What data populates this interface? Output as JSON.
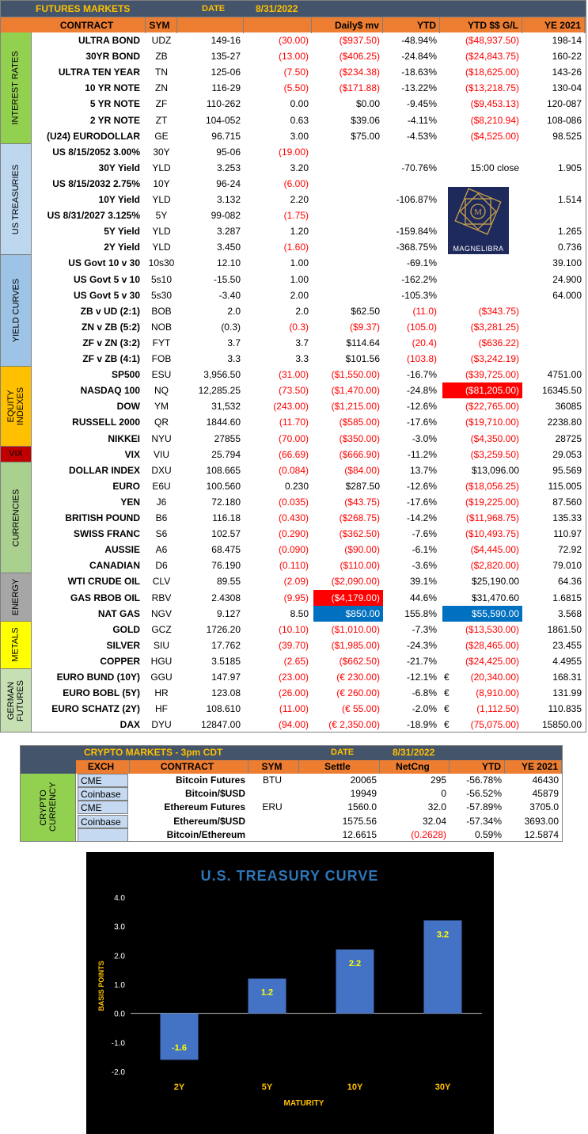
{
  "futures": {
    "title": "FUTURES MARKETS",
    "date_label": "DATE",
    "date": "8/31/2022",
    "columns": [
      "CONTRACT",
      "SYM",
      "",
      "",
      "Daily$ mv",
      "YTD",
      "YTD $$ G/L",
      "YE 2021"
    ],
    "categories": [
      {
        "label": "INTEREST RATES",
        "color": "#92d050"
      },
      {
        "label": "US TREASURIES",
        "color": "#bdd7ee"
      },
      {
        "label": "YIELD CURVES",
        "color": "#9dc3e6"
      },
      {
        "label": "EQUITY INDEXES",
        "color": "#ffc000"
      },
      {
        "label": "VIX",
        "color": "#c00000"
      },
      {
        "label": "CURRENCIES",
        "color": "#a9d08e"
      },
      {
        "label": "ENERGY",
        "color": "#a6a6a6"
      },
      {
        "label": "METALS",
        "color": "#ffff00"
      },
      {
        "label": "GERMAN FUTURES",
        "color": "#c6e0b4"
      }
    ],
    "rows": [
      {
        "contract": "ULTRA BOND",
        "sym": "UDZ",
        "price": "149-16",
        "chg": "(30.00)",
        "daily": "($937.50)",
        "ytd": "-48.94%",
        "euro": "",
        "gl": "($48,937.50)",
        "ye": "198-14"
      },
      {
        "contract": "30YR BOND",
        "sym": "ZB",
        "price": "135-27",
        "chg": "(13.00)",
        "daily": "($406.25)",
        "ytd": "-24.84%",
        "euro": "",
        "gl": "($24,843.75)",
        "ye": "160-22"
      },
      {
        "contract": "ULTRA TEN YEAR",
        "sym": "TN",
        "price": "125-06",
        "chg": "(7.50)",
        "daily": "($234.38)",
        "ytd": "-18.63%",
        "euro": "",
        "gl": "($18,625.00)",
        "ye": "143-26"
      },
      {
        "contract": "10 YR NOTE",
        "sym": "ZN",
        "price": "116-29",
        "chg": "(5.50)",
        "daily": "($171.88)",
        "ytd": "-13.22%",
        "euro": "",
        "gl": "($13,218.75)",
        "ye": "130-04"
      },
      {
        "contract": "5 YR NOTE",
        "sym": "ZF",
        "price": "110-262",
        "chg": "0.00",
        "daily": "$0.00",
        "ytd": "-9.45%",
        "euro": "",
        "gl": "($9,453.13)",
        "ye": "120-087"
      },
      {
        "contract": "2 YR NOTE",
        "sym": "ZT",
        "price": "104-052",
        "chg": "0.63",
        "daily": "$39.06",
        "ytd": "-4.11%",
        "euro": "",
        "gl": "($8,210.94)",
        "ye": "108-086"
      },
      {
        "contract": "(U24) EURODOLLAR",
        "sym": "GE",
        "price": "96.715",
        "chg": "3.00",
        "daily": "$75.00",
        "ytd": "-4.53%",
        "euro": "",
        "gl": "($4,525.00)",
        "ye": "98.525"
      },
      {
        "contract": "US 8/15/2052 3.00%",
        "sym": "30Y",
        "price": "95-06",
        "chg": "(19.00)",
        "daily": "",
        "ytd": "",
        "euro": "",
        "gl": "",
        "ye": ""
      },
      {
        "contract": "30Y Yield",
        "sym": "YLD",
        "price": "3.253",
        "chg": "3.20",
        "daily": "",
        "ytd": "-70.76%",
        "euro": "",
        "gl": "15:00 close",
        "ye": "1.905"
      },
      {
        "contract": "US 8/15/2032 2.75%",
        "sym": "10Y",
        "price": "96-24",
        "chg": "(6.00)",
        "daily": "",
        "ytd": "",
        "euro": "",
        "gl": "",
        "ye": ""
      },
      {
        "contract": "10Y Yield",
        "sym": "YLD",
        "price": "3.132",
        "chg": "2.20",
        "daily": "",
        "ytd": "-106.87%",
        "euro": "",
        "gl": "",
        "ye": "1.514"
      },
      {
        "contract": "US 8/31/2027 3.125%",
        "sym": "5Y",
        "price": "99-082",
        "chg": "(1.75)",
        "daily": "",
        "ytd": "",
        "euro": "",
        "gl": "",
        "ye": ""
      },
      {
        "contract": "5Y Yield",
        "sym": "YLD",
        "price": "3.287",
        "chg": "1.20",
        "daily": "",
        "ytd": "-159.84%",
        "euro": "",
        "gl": "",
        "ye": "1.265"
      },
      {
        "contract": "2Y Yield",
        "sym": "YLD",
        "price": "3.450",
        "chg": "(1.60)",
        "daily": "",
        "ytd": "-368.75%",
        "euro": "",
        "gl": "",
        "ye": "0.736"
      },
      {
        "contract": "US Govt 10 v 30",
        "sym": "10s30",
        "price": "12.10",
        "chg": "1.00",
        "daily": "",
        "ytd": "-69.1%",
        "euro": "",
        "gl": "",
        "ye": "39.100"
      },
      {
        "contract": "US Govt 5 v 10",
        "sym": "5s10",
        "price": "-15.50",
        "chg": "1.00",
        "daily": "",
        "ytd": "-162.2%",
        "euro": "",
        "gl": "",
        "ye": "24.900"
      },
      {
        "contract": "US Govt 5 v 30",
        "sym": "5s30",
        "price": "-3.40",
        "chg": "2.00",
        "daily": "",
        "ytd": "-105.3%",
        "euro": "",
        "gl": "",
        "ye": "64.000"
      },
      {
        "contract": "ZB v UD (2:1)",
        "sym": "BOB",
        "price": "2.0",
        "chg": "2.0",
        "daily": "$62.50",
        "ytd": "(11.0)",
        "euro": "",
        "gl": "($343.75)",
        "ye": ""
      },
      {
        "contract": "ZN v ZB (5:2)",
        "sym": "NOB",
        "price": "(0.3)",
        "chg": "(0.3)",
        "daily": "($9.37)",
        "ytd": "(105.0)",
        "euro": "",
        "gl": "($3,281.25)",
        "ye": ""
      },
      {
        "contract": "ZF v ZN (3:2)",
        "sym": "FYT",
        "price": "3.7",
        "chg": "3.7",
        "daily": "$114.64",
        "ytd": "(20.4)",
        "euro": "",
        "gl": "($636.22)",
        "ye": ""
      },
      {
        "contract": "ZF v ZB (4:1)",
        "sym": "FOB",
        "price": "3.3",
        "chg": "3.3",
        "daily": "$101.56",
        "ytd": "(103.8)",
        "euro": "",
        "gl": "($3,242.19)",
        "ye": ""
      },
      {
        "contract": "SP500",
        "sym": "ESU",
        "price": "3,956.50",
        "chg": "(31.00)",
        "daily": "($1,550.00)",
        "ytd": "-16.7%",
        "euro": "",
        "gl": "($39,725.00)",
        "ye": "4751.00"
      },
      {
        "contract": "NASDAQ 100",
        "sym": "NQ",
        "price": "12,285.25",
        "chg": "(73.50)",
        "daily": "($1,470.00)",
        "ytd": "-24.8%",
        "euro": "",
        "gl": "($81,205.00)",
        "ye": "16345.50"
      },
      {
        "contract": "DOW",
        "sym": "YM",
        "price": "31,532",
        "chg": "(243.00)",
        "daily": "($1,215.00)",
        "ytd": "-12.6%",
        "euro": "",
        "gl": "($22,765.00)",
        "ye": "36085"
      },
      {
        "contract": "RUSSELL 2000",
        "sym": "QR",
        "price": "1844.60",
        "chg": "(11.70)",
        "daily": "($585.00)",
        "ytd": "-17.6%",
        "euro": "",
        "gl": "($19,710.00)",
        "ye": "2238.80"
      },
      {
        "contract": "NIKKEI",
        "sym": "NYU",
        "price": "27855",
        "chg": "(70.00)",
        "daily": "($350.00)",
        "ytd": "-3.0%",
        "euro": "",
        "gl": "($4,350.00)",
        "ye": "28725"
      },
      {
        "contract": "VIX",
        "sym": "VIU",
        "price": "25.794",
        "chg": "(66.69)",
        "daily": "($666.90)",
        "ytd": "-11.2%",
        "euro": "",
        "gl": "($3,259.50)",
        "ye": "29.053"
      },
      {
        "contract": "DOLLAR INDEX",
        "sym": "DXU",
        "price": "108.665",
        "chg": "(0.084)",
        "daily": "($84.00)",
        "ytd": "13.7%",
        "euro": "",
        "gl": "$13,096.00",
        "ye": "95.569"
      },
      {
        "contract": "EURO",
        "sym": "E6U",
        "price": "100.560",
        "chg": "0.230",
        "daily": "$287.50",
        "ytd": "-12.6%",
        "euro": "",
        "gl": "($18,056.25)",
        "ye": "115.005"
      },
      {
        "contract": "YEN",
        "sym": "J6",
        "price": "72.180",
        "chg": "(0.035)",
        "daily": "($43.75)",
        "ytd": "-17.6%",
        "euro": "",
        "gl": "($19,225.00)",
        "ye": "87.560"
      },
      {
        "contract": "BRITISH POUND",
        "sym": "B6",
        "price": "116.18",
        "chg": "(0.430)",
        "daily": "($268.75)",
        "ytd": "-14.2%",
        "euro": "",
        "gl": "($11,968.75)",
        "ye": "135.33"
      },
      {
        "contract": "SWISS FRANC",
        "sym": "S6",
        "price": "102.57",
        "chg": "(0.290)",
        "daily": "($362.50)",
        "ytd": "-7.6%",
        "euro": "",
        "gl": "($10,493.75)",
        "ye": "110.97"
      },
      {
        "contract": "AUSSIE",
        "sym": "A6",
        "price": "68.475",
        "chg": "(0.090)",
        "daily": "($90.00)",
        "ytd": "-6.1%",
        "euro": "",
        "gl": "($4,445.00)",
        "ye": "72.92"
      },
      {
        "contract": "CANADIAN",
        "sym": "D6",
        "price": "76.190",
        "chg": "(0.110)",
        "daily": "($110.00)",
        "ytd": "-3.6%",
        "euro": "",
        "gl": "($2,820.00)",
        "ye": "79.010"
      },
      {
        "contract": "WTI CRUDE OIL",
        "sym": "CLV",
        "price": "89.55",
        "chg": "(2.09)",
        "daily": "($2,090.00)",
        "ytd": "39.1%",
        "euro": "",
        "gl": "$25,190.00",
        "ye": "64.36"
      },
      {
        "contract": "GAS RBOB OIL",
        "sym": "RBV",
        "price": "2.4308",
        "chg": "(9.95)",
        "daily": "($4,179.00)",
        "ytd": "44.6%",
        "euro": "",
        "gl": "$31,470.60",
        "ye": "1.6815"
      },
      {
        "contract": "NAT GAS",
        "sym": "NGV",
        "price": "9.127",
        "chg": "8.50",
        "daily": "$850.00",
        "ytd": "155.8%",
        "euro": "",
        "gl": "$55,590.00",
        "ye": "3.568"
      },
      {
        "contract": "GOLD",
        "sym": "GCZ",
        "price": "1726.20",
        "chg": "(10.10)",
        "daily": "($1,010.00)",
        "ytd": "-7.3%",
        "euro": "",
        "gl": "($13,530.00)",
        "ye": "1861.50"
      },
      {
        "contract": "SILVER",
        "sym": "SIU",
        "price": "17.762",
        "chg": "(39.70)",
        "daily": "($1,985.00)",
        "ytd": "-24.3%",
        "euro": "",
        "gl": "($28,465.00)",
        "ye": "23.455"
      },
      {
        "contract": "COPPER",
        "sym": "HGU",
        "price": "3.5185",
        "chg": "(2.65)",
        "daily": "($662.50)",
        "ytd": "-21.7%",
        "euro": "",
        "gl": "($24,425.00)",
        "ye": "4.4955"
      },
      {
        "contract": "EURO BUND (10Y)",
        "sym": "GGU",
        "price": "147.97",
        "chg": "(23.00)",
        "daily": "(€ 230.00)",
        "ytd": "-12.1%",
        "euro": "€",
        "gl": "(20,340.00)",
        "ye": "168.31"
      },
      {
        "contract": "EURO BOBL (5Y)",
        "sym": "HR",
        "price": "123.08",
        "chg": "(26.00)",
        "daily": "(€ 260.00)",
        "ytd": "-6.8%",
        "euro": "€",
        "gl": "(8,910.00)",
        "ye": "131.99"
      },
      {
        "contract": "EURO SCHATZ (2Y)",
        "sym": "HF",
        "price": "108.610",
        "chg": "(11.00)",
        "daily": "(€ 55.00)",
        "ytd": "-2.0%",
        "euro": "€",
        "gl": "(1,112.50)",
        "ye": "110.835"
      },
      {
        "contract": "DAX",
        "sym": "DYU",
        "price": "12847.00",
        "chg": "(94.00)",
        "daily": "(€ 2,350.00)",
        "ytd": "-18.9%",
        "euro": "€",
        "gl": "(75,075.00)",
        "ye": "15850.00"
      }
    ],
    "logo_text": "MAGNELIBRA",
    "highlight_colors": {
      "red": "#ff0000",
      "blue": "#0070c0"
    }
  },
  "crypto": {
    "title": "CRYPTO MARKETS - 3pm CDT",
    "date_label": "DATE",
    "date": "8/31/2022",
    "columns": [
      "EXCH",
      "CONTRACT",
      "SYM",
      "Settle",
      "NetCng",
      "YTD",
      "YE 2021"
    ],
    "category": "CRYPTO CURRENCY",
    "rows": [
      {
        "exch": "CME",
        "contract": "Bitcoin Futures",
        "sym": "BTU",
        "settle": "20065",
        "net": "295",
        "ytd": "-56.78%",
        "ye": "46430"
      },
      {
        "exch": "Coinbase",
        "contract": "Bitcoin/$USD",
        "sym": "",
        "settle": "19949",
        "net": "0",
        "ytd": "-56.52%",
        "ye": "45879"
      },
      {
        "exch": "CME",
        "contract": "Ethereum Futures",
        "sym": "ERU",
        "settle": "1560.0",
        "net": "32.0",
        "ytd": "-57.89%",
        "ye": "3705.0"
      },
      {
        "exch": "Coinbase",
        "contract": "Ethereum/$USD",
        "sym": "",
        "settle": "1575.56",
        "net": "32.04",
        "ytd": "-57.34%",
        "ye": "3693.00"
      },
      {
        "exch": "",
        "contract": "Bitcoin/Ethereum",
        "sym": "",
        "settle": "12.6615",
        "net": "(0.2628)",
        "ytd": "0.59%",
        "ye": "12.5874"
      }
    ]
  },
  "chart_data": {
    "type": "bar",
    "title": "U.S. TREASURY CURVE",
    "categories": [
      "2Y",
      "5Y",
      "10Y",
      "30Y"
    ],
    "values": [
      -1.6,
      1.2,
      2.2,
      3.2
    ],
    "data_labels": [
      "-1.6",
      "1.2",
      "2.2",
      "3.2"
    ],
    "xlabel": "MATURITY",
    "ylabel": "BASIS POINTS",
    "ylim": [
      -2.0,
      4.0
    ],
    "yticks": [
      "4.0",
      "3.0",
      "2.0",
      "1.0",
      "0.0",
      "-1.0",
      "-2.0"
    ],
    "colors": {
      "bar": "#4472c4",
      "label": "#ffff00",
      "title": "#2e75b6",
      "axis": "#ffc000"
    }
  }
}
